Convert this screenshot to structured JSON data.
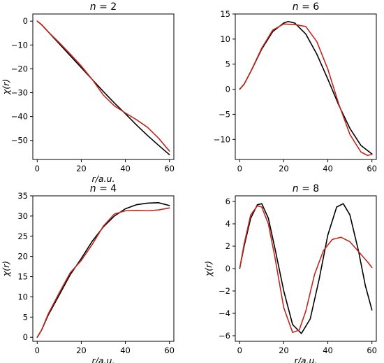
{
  "chart_data": [
    {
      "type": "line",
      "title": "n = 2",
      "xlabel": "r/a.u.",
      "ylabel": "χ(r)",
      "xlim": [
        -2,
        62
      ],
      "ylim": [
        -58,
        3
      ],
      "xticks": [
        0,
        20,
        40,
        60
      ],
      "yticks": [
        0,
        -10,
        -20,
        -30,
        -40,
        -50
      ],
      "grid": false,
      "series": [
        {
          "color": "#000000",
          "x": [
            0,
            2,
            5,
            10,
            15,
            20,
            25,
            30,
            35,
            40,
            45,
            50,
            55,
            60
          ],
          "y": [
            0,
            -1.5,
            -4.5,
            -9.5,
            -14.5,
            -19.5,
            -24.5,
            -29.5,
            -34.3,
            -38.8,
            -43.5,
            -47.9,
            -52.0,
            -56.0
          ]
        },
        {
          "color": "#c0271e",
          "x": [
            0,
            2,
            5,
            10,
            15,
            20,
            25,
            30,
            35,
            40,
            45,
            50,
            55,
            60
          ],
          "y": [
            0,
            -1.5,
            -4.5,
            -9.0,
            -13.8,
            -18.8,
            -24.5,
            -31.0,
            -35.5,
            -38.5,
            -41.3,
            -44.5,
            -49.0,
            -54.5
          ]
        }
      ]
    },
    {
      "type": "line",
      "title": "n = 6",
      "xlabel": "",
      "ylabel": "",
      "xlim": [
        -2,
        62
      ],
      "ylim": [
        -14,
        15
      ],
      "xticks": [
        0,
        20,
        40,
        60
      ],
      "yticks": [
        15,
        10,
        5,
        0,
        -5,
        -10
      ],
      "grid": false,
      "series": [
        {
          "color": "#000000",
          "x": [
            0,
            2,
            5,
            10,
            15,
            20,
            22,
            25,
            30,
            35,
            40,
            45,
            50,
            55,
            60
          ],
          "y": [
            0,
            1.0,
            3.5,
            8.0,
            11.5,
            13.2,
            13.5,
            13.2,
            11.0,
            7.0,
            2.0,
            -3.2,
            -7.8,
            -11.2,
            -12.9
          ]
        },
        {
          "color": "#c0271e",
          "x": [
            0,
            2,
            5,
            10,
            15,
            20,
            25,
            30,
            35,
            40,
            45,
            50,
            55,
            58,
            60
          ],
          "y": [
            0,
            1.0,
            3.5,
            8.2,
            11.8,
            13.0,
            12.9,
            12.5,
            9.5,
            4.0,
            -3.0,
            -9.0,
            -12.5,
            -13.2,
            -13.0
          ]
        }
      ]
    },
    {
      "type": "line",
      "title": "n = 4",
      "xlabel": "r/a.u.",
      "ylabel": "χ(r)",
      "xlim": [
        -2,
        62
      ],
      "ylim": [
        -1,
        35
      ],
      "xticks": [
        0,
        20,
        40,
        60
      ],
      "yticks": [
        35,
        30,
        25,
        20,
        15,
        10,
        5,
        0
      ],
      "grid": false,
      "series": [
        {
          "color": "#000000",
          "x": [
            0,
            2,
            5,
            10,
            15,
            20,
            25,
            30,
            35,
            40,
            45,
            50,
            55,
            60
          ],
          "y": [
            0,
            1.8,
            5.5,
            10.5,
            15.5,
            19.5,
            23.8,
            27.3,
            30.0,
            31.8,
            32.8,
            33.2,
            33.3,
            32.6
          ]
        },
        {
          "color": "#c0271e",
          "x": [
            0,
            2,
            5,
            10,
            15,
            20,
            25,
            30,
            35,
            40,
            45,
            50,
            55,
            60
          ],
          "y": [
            0,
            1.8,
            5.8,
            11.0,
            16.0,
            19.0,
            23.0,
            27.5,
            30.5,
            31.3,
            31.4,
            31.3,
            31.5,
            32.0
          ]
        }
      ]
    },
    {
      "type": "line",
      "title": "n = 8",
      "xlabel": "r/a.u.",
      "ylabel": "χ(r)",
      "xlim": [
        -2,
        62
      ],
      "ylim": [
        -6.5,
        6.5
      ],
      "xticks": [
        0,
        20,
        40,
        60
      ],
      "yticks": [
        6,
        4,
        2,
        0,
        -2,
        -4,
        -6
      ],
      "grid": false,
      "series": [
        {
          "color": "#000000",
          "x": [
            0,
            2,
            5,
            8,
            10,
            13,
            16,
            20,
            24,
            28,
            32,
            36,
            40,
            44,
            47,
            50,
            54,
            57,
            60
          ],
          "y": [
            0,
            2.0,
            4.5,
            5.7,
            5.8,
            4.5,
            1.8,
            -2.0,
            -5.0,
            -5.8,
            -4.5,
            -1.0,
            3.0,
            5.5,
            5.8,
            4.8,
            1.5,
            -1.5,
            -3.7
          ]
        },
        {
          "color": "#c0271e",
          "x": [
            0,
            2,
            5,
            8,
            10,
            13,
            16,
            20,
            24,
            27,
            30,
            34,
            38,
            42,
            46,
            50,
            54,
            58,
            60
          ],
          "y": [
            0,
            2.2,
            4.8,
            5.6,
            5.5,
            4.0,
            1.0,
            -3.5,
            -5.7,
            -5.5,
            -3.8,
            -0.5,
            1.6,
            2.6,
            2.8,
            2.4,
            1.5,
            0.6,
            0.1
          ]
        }
      ]
    }
  ]
}
